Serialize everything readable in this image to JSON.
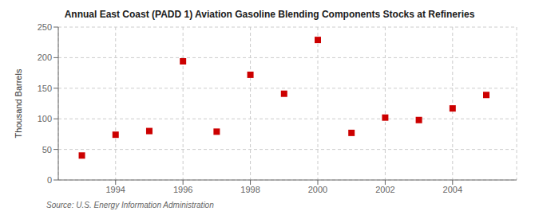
{
  "chart_data": {
    "type": "scatter",
    "title": "Annual East Coast (PADD 1) Aviation Gasoline Blending Components Stocks at Refineries",
    "ylabel": "Thousand Barrels",
    "annotations": [
      "Source: U.S. Energy Information Administration"
    ],
    "x": [
      1993,
      1994,
      1995,
      1996,
      1997,
      1998,
      1999,
      2000,
      2001,
      2002,
      2003,
      2004,
      2005
    ],
    "values": [
      40,
      74,
      80,
      194,
      79,
      172,
      141,
      229,
      77,
      102,
      98,
      117,
      139
    ],
    "color": "#cc0000",
    "marker": "square",
    "xlim": [
      1992.3,
      2005.9
    ],
    "xticks": [
      1994,
      1996,
      1998,
      2000,
      2002,
      2004
    ],
    "ylim": [
      0,
      250
    ],
    "yticks": [
      0,
      50,
      100,
      150,
      200,
      250
    ],
    "grid": true
  }
}
